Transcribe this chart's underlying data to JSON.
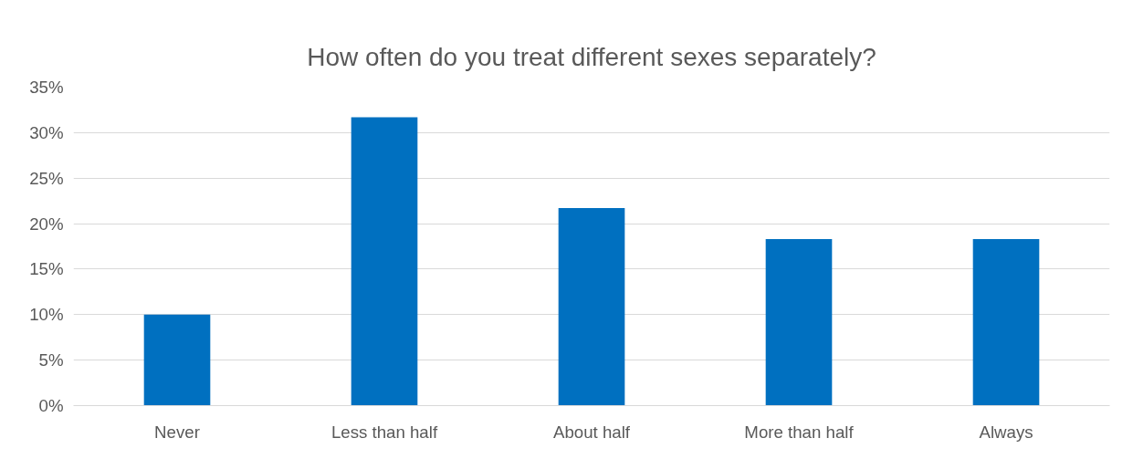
{
  "chart_data": {
    "type": "bar",
    "title": "How often do you treat different sexes separately?",
    "categories": [
      "Never",
      "Less than half",
      "About half",
      "More than half",
      "Always"
    ],
    "values": [
      10,
      31.7,
      21.7,
      18.3,
      18.3
    ],
    "color": "#0070c0",
    "ylim": [
      0,
      35
    ],
    "yticks": [
      {
        "value": 0,
        "label": "0%"
      },
      {
        "value": 5,
        "label": "5%"
      },
      {
        "value": 10,
        "label": "10%"
      },
      {
        "value": 15,
        "label": "15%"
      },
      {
        "value": 20,
        "label": "20%"
      },
      {
        "value": 25,
        "label": "25%"
      },
      {
        "value": 30,
        "label": "30%"
      },
      {
        "value": 35,
        "label": "35%"
      }
    ],
    "grid": "y"
  }
}
